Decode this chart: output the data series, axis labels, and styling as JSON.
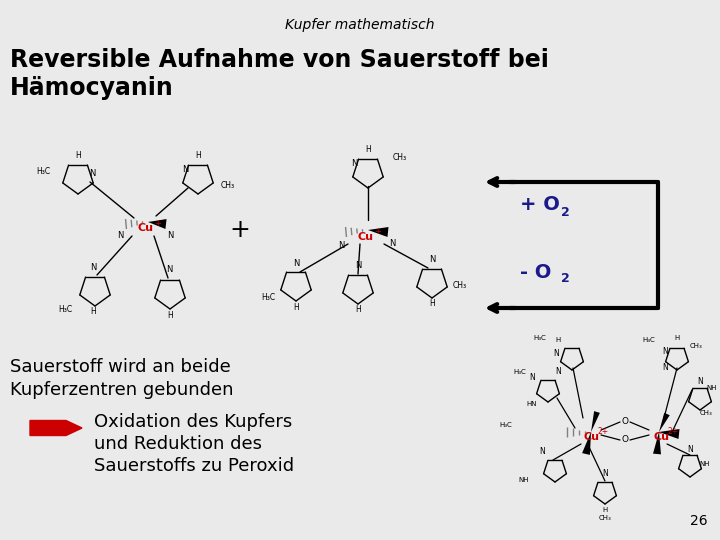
{
  "title": "Kupfer mathematisch",
  "heading_line1": "Reversible Aufnahme von Sauerstoff bei",
  "heading_line2": "Hämocyanin",
  "bg_color": "#EAEAEA",
  "text_o2_color": "#1a1a8c",
  "cu_color": "#CC0000",
  "black": "#000000",
  "arrow_red": "#CC0000",
  "bottom_text_line1": "Sauerstoff wird an beide",
  "bottom_text_line2": "Kupferzentren gebunden",
  "bullet_line1": "Oxidation des Kupfers",
  "bullet_line2": "und Reduktion des",
  "bullet_line3": "Sauerstoffs zu Peroxid",
  "page_number": "26",
  "plus_sign": "+"
}
